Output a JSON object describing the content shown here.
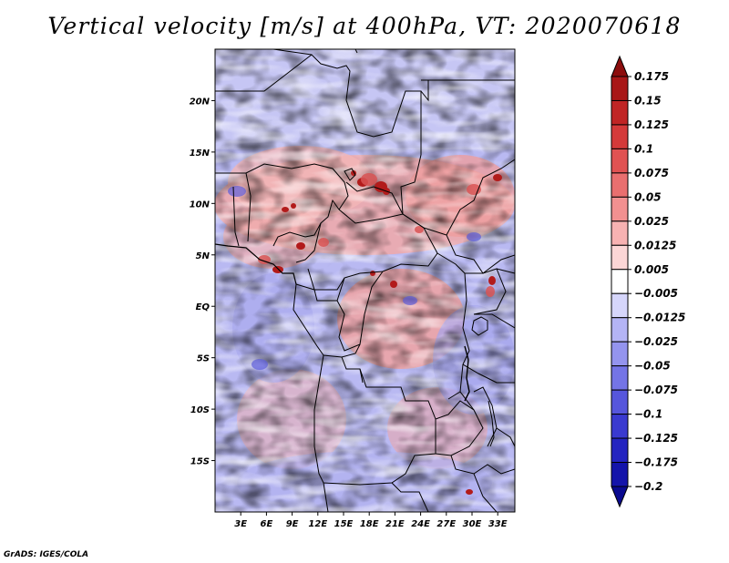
{
  "title": "Vertical velocity [m/s] at 400hPa, VT: 2020070618",
  "credit": "GrADS: IGES/COLA",
  "map": {
    "variable": "Vertical velocity",
    "units": "m/s",
    "level": "400hPa",
    "valid_time": "2020070618",
    "lon_range": [
      0,
      35
    ],
    "lat_range": [
      -20,
      25
    ],
    "lat_ticks": [
      {
        "value": 20,
        "label": "20N"
      },
      {
        "value": 15,
        "label": "15N"
      },
      {
        "value": 10,
        "label": "10N"
      },
      {
        "value": 5,
        "label": "5N"
      },
      {
        "value": 0,
        "label": "EQ"
      },
      {
        "value": -5,
        "label": "5S"
      },
      {
        "value": -10,
        "label": "10S"
      },
      {
        "value": -15,
        "label": "15S"
      }
    ],
    "lon_ticks": [
      {
        "value": 3,
        "label": "3E"
      },
      {
        "value": 6,
        "label": "6E"
      },
      {
        "value": 9,
        "label": "9E"
      },
      {
        "value": 12,
        "label": "12E"
      },
      {
        "value": 15,
        "label": "15E"
      },
      {
        "value": 18,
        "label": "18E"
      },
      {
        "value": 21,
        "label": "21E"
      },
      {
        "value": 24,
        "label": "24E"
      },
      {
        "value": 27,
        "label": "27E"
      },
      {
        "value": 30,
        "label": "30E"
      },
      {
        "value": 33,
        "label": "33E"
      }
    ]
  },
  "colorbar": {
    "labels": [
      "0.175",
      "0.15",
      "0.125",
      "0.1",
      "0.075",
      "0.05",
      "0.025",
      "0.0125",
      "0.005",
      "−0.005",
      "−0.0125",
      "−0.025",
      "−0.05",
      "−0.075",
      "−0.1",
      "−0.125",
      "−0.175",
      "−0.2"
    ],
    "colors": [
      "#8c0d0d",
      "#a81717",
      "#c02525",
      "#d43a3a",
      "#e05252",
      "#e96f6f",
      "#f29090",
      "#f7b2b2",
      "#fbd6d6",
      "#ffffff",
      "#d6d6fb",
      "#b4b4f5",
      "#9494ee",
      "#7474e6",
      "#5656dc",
      "#3a3ad0",
      "#2424c0",
      "#1414aa",
      "#0a0a90"
    ]
  }
}
